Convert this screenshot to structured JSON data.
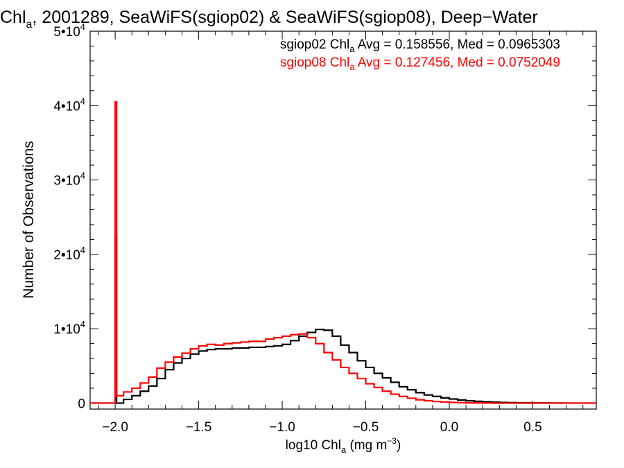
{
  "chart_data": {
    "type": "line",
    "title": {
      "main": "Chl",
      "main_sub": "a",
      "rest": ", 2001289, SeaWiFS(sgiop02) & SeaWiFS(sgiop08), Deep−Water"
    },
    "xlabel": {
      "pre": "log10 Chl",
      "sub": "a",
      "mid": " (mg m",
      "sup": "−3",
      "post": ")"
    },
    "ylabel": "Number of Observations",
    "xlim": [
      -2.15,
      0.88
    ],
    "ylim": [
      -800,
      50000
    ],
    "xticks": [
      -2.0,
      -1.5,
      -1.0,
      -0.5,
      0.0,
      0.5
    ],
    "xtick_labels": [
      "−2.0",
      "−1.5",
      "−1.0",
      "−0.5",
      "0.0",
      "0.5"
    ],
    "yticks": [
      {
        "value": 0,
        "base": "0",
        "exp": ""
      },
      {
        "value": 10000,
        "base": "1•10",
        "exp": "4"
      },
      {
        "value": 20000,
        "base": "2•10",
        "exp": "4"
      },
      {
        "value": 30000,
        "base": "3•10",
        "exp": "4"
      },
      {
        "value": 40000,
        "base": "4•10",
        "exp": "4"
      },
      {
        "value": 50000,
        "base": "5•10",
        "exp": "4"
      }
    ],
    "legend_placement": "top-right",
    "series": [
      {
        "name": "sgiop02",
        "color": "#000000",
        "legend": {
          "pre": "sgiop02 Chl",
          "sub": "a",
          "post": " Avg = 0.158556, Med = 0.0965303"
        },
        "spike": {
          "x": -2.0,
          "y": 22500
        },
        "x": [
          -2.0,
          -1.95,
          -1.9,
          -1.85,
          -1.8,
          -1.75,
          -1.7,
          -1.65,
          -1.6,
          -1.55,
          -1.5,
          -1.45,
          -1.4,
          -1.35,
          -1.3,
          -1.25,
          -1.2,
          -1.15,
          -1.1,
          -1.05,
          -1.0,
          -0.95,
          -0.9,
          -0.85,
          -0.8,
          -0.75,
          -0.7,
          -0.65,
          -0.6,
          -0.55,
          -0.5,
          -0.45,
          -0.4,
          -0.35,
          -0.3,
          -0.25,
          -0.2,
          -0.15,
          -0.1,
          -0.05,
          0.0,
          0.05,
          0.1,
          0.15,
          0.2,
          0.25,
          0.3,
          0.35,
          0.4,
          0.5,
          0.6,
          0.7,
          0.8,
          0.88
        ],
        "y": [
          0,
          500,
          1000,
          1600,
          2300,
          3300,
          4500,
          5400,
          6000,
          6600,
          7000,
          7200,
          7300,
          7300,
          7400,
          7400,
          7500,
          7500,
          7600,
          7700,
          7900,
          8400,
          9000,
          9500,
          9900,
          9800,
          9000,
          7800,
          6800,
          5700,
          4800,
          4000,
          3400,
          2800,
          2200,
          1800,
          1400,
          1100,
          900,
          700,
          550,
          420,
          320,
          240,
          180,
          130,
          90,
          60,
          40,
          20,
          10,
          0,
          0,
          0
        ]
      },
      {
        "name": "sgiop08",
        "color": "#ff0000",
        "legend": {
          "pre": "sgiop08 Chl",
          "sub": "a",
          "post": " Avg = 0.127456, Med = 0.0752049"
        },
        "spike": {
          "x": -2.0,
          "y": 40500
        },
        "x": [
          -2.0,
          -1.95,
          -1.9,
          -1.85,
          -1.8,
          -1.75,
          -1.7,
          -1.65,
          -1.6,
          -1.55,
          -1.5,
          -1.45,
          -1.4,
          -1.35,
          -1.3,
          -1.25,
          -1.2,
          -1.15,
          -1.1,
          -1.05,
          -1.0,
          -0.95,
          -0.9,
          -0.85,
          -0.8,
          -0.75,
          -0.7,
          -0.65,
          -0.6,
          -0.55,
          -0.5,
          -0.45,
          -0.4,
          -0.35,
          -0.3,
          -0.25,
          -0.2,
          -0.15,
          -0.1,
          -0.05,
          0.0,
          0.05,
          0.1,
          0.15,
          0.2,
          0.25,
          0.3,
          0.35,
          0.4,
          0.5,
          0.6,
          0.7,
          0.8,
          0.88
        ],
        "y": [
          1000,
          1500,
          2000,
          2700,
          3500,
          4700,
          5500,
          6200,
          6700,
          7300,
          7700,
          7900,
          7800,
          8000,
          8100,
          8200,
          8300,
          8300,
          8600,
          8800,
          9000,
          9200,
          9300,
          8800,
          8000,
          6800,
          5800,
          4800,
          4000,
          3300,
          2600,
          2100,
          1600,
          1200,
          900,
          650,
          450,
          320,
          220,
          150,
          100,
          60,
          40,
          20,
          10,
          0,
          0,
          0,
          0,
          0,
          0,
          0,
          0,
          0
        ]
      }
    ]
  }
}
